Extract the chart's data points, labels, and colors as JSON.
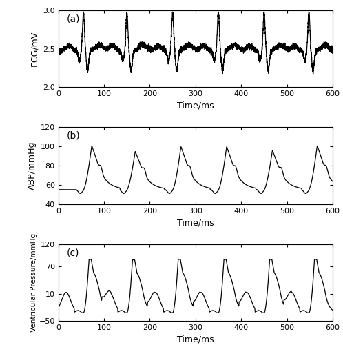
{
  "panels": [
    "(a)",
    "(b)",
    "(c)"
  ],
  "xlim": [
    0,
    600
  ],
  "ecg_ylim": [
    2.0,
    3.0
  ],
  "abp_ylim": [
    40,
    120
  ],
  "vp_ylim": [
    -50,
    120
  ],
  "ecg_yticks": [
    2.0,
    2.5,
    3.0
  ],
  "abp_yticks": [
    40,
    60,
    80,
    100,
    120
  ],
  "vp_yticks": [
    -50,
    10,
    70,
    120
  ],
  "xticks": [
    0,
    100,
    200,
    300,
    400,
    500,
    600
  ],
  "xlabel": "Time/ms",
  "ecg_ylabel": "ECG/mV",
  "abp_ylabel": "ABP/mmHg",
  "vp_ylabel": "Ventricular Pressure/mmHg",
  "linecolor": "black",
  "linewidth": 0.9,
  "figsize": [
    4.98,
    5.0
  ],
  "dpi": 100,
  "beat_times": [
    55,
    150,
    250,
    350,
    450,
    548
  ],
  "ecg_baseline": 2.47,
  "abp_baseline": 55,
  "vp_baseline": -32
}
